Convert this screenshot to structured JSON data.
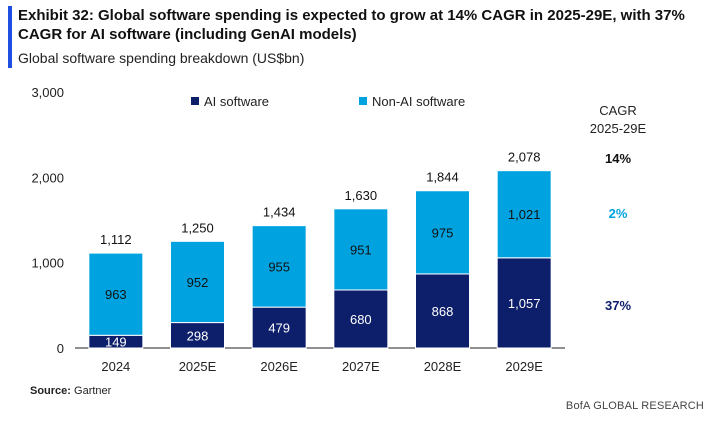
{
  "header": {
    "title": "Exhibit 32: Global software spending is expected to grow at 14% CAGR in 2025-29E, with 37% CAGR for AI software (including GenAI models)",
    "subtitle": "Global software spending breakdown (US$bn)"
  },
  "chart_data": {
    "type": "bar",
    "stacked": true,
    "categories": [
      "2024",
      "2025E",
      "2026E",
      "2027E",
      "2028E",
      "2029E"
    ],
    "series": [
      {
        "name": "AI software",
        "color": "#0d1f6b",
        "values": [
          149,
          298,
          479,
          680,
          868,
          1057
        ],
        "labels": [
          "149",
          "298",
          "479",
          "680",
          "868",
          "1,057"
        ]
      },
      {
        "name": "Non-AI software",
        "color": "#00a3e0",
        "values": [
          963,
          952,
          955,
          951,
          975,
          1021
        ],
        "labels": [
          "963",
          "952",
          "955",
          "951",
          "975",
          "1,021"
        ]
      }
    ],
    "totals": [
      1112,
      1250,
      1434,
      1630,
      1844,
      2078
    ],
    "total_labels": [
      "1,112",
      "1,250",
      "1,434",
      "1,630",
      "1,844",
      "2,078"
    ],
    "ylim": [
      0,
      3000
    ],
    "yticks": [
      0,
      1000,
      2000,
      3000
    ],
    "ytick_labels": [
      "0",
      "1,000",
      "2,000",
      "3,000"
    ],
    "legend_position": "top",
    "cagr": {
      "header_line1": "CAGR",
      "header_line2": "2025-29E",
      "total": "14%",
      "non_ai": "2%",
      "ai": "37%",
      "total_color": "#111111",
      "non_ai_color": "#00a3e0",
      "ai_color": "#0d1f6b"
    }
  },
  "footer": {
    "source_label": "Source:",
    "source_text": " Gartner",
    "brand": "BofA GLOBAL RESEARCH"
  }
}
